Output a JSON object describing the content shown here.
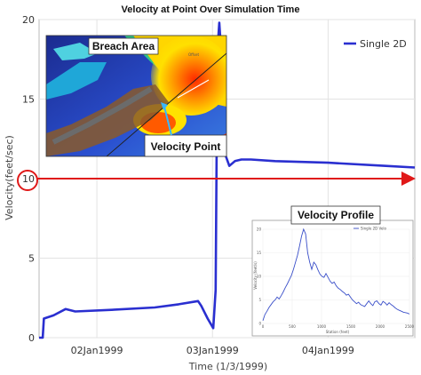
{
  "chart_data": {
    "type": "line",
    "title": "Velocity at Point Over Simulation Time",
    "xlabel": "Time (1/3/1999)",
    "ylabel": "Velocity(feet/sec)",
    "xlim": [
      "1999-01-01T12:00",
      "1999-01-04T18:00"
    ],
    "ylim": [
      0,
      20
    ],
    "yticks": [
      0,
      5,
      10,
      15,
      20
    ],
    "xticks": [
      {
        "at": "1999-01-02T00:00",
        "label": "02Jan1999"
      },
      {
        "at": "1999-01-03T00:00",
        "label": "03Jan1999"
      },
      {
        "at": "1999-01-04T00:00",
        "label": "04Jan1999"
      }
    ],
    "grid": true,
    "legend_position": "top-right",
    "series": [
      {
        "name": "Single 2D",
        "color": "#2a2fd0",
        "x": [
          "1999-01-01T12:00",
          "1999-01-01T12:45",
          "1999-01-01T13:00",
          "1999-01-01T15:00",
          "1999-01-01T17:30",
          "1999-01-01T19:30",
          "1999-01-02T03:00",
          "1999-01-02T12:00",
          "1999-01-02T17:00",
          "1999-01-02T21:00",
          "1999-01-02T21:40",
          "1999-01-02T23:00",
          "1999-01-03T00:10",
          "1999-01-03T00:40",
          "1999-01-03T01:00",
          "1999-01-03T01:25",
          "1999-01-03T02:00",
          "1999-01-03T02:40",
          "1999-01-03T03:30",
          "1999-01-03T04:40",
          "1999-01-03T06:00",
          "1999-01-03T08:00",
          "1999-01-03T13:00",
          "1999-01-04T00:00",
          "1999-01-04T12:00",
          "1999-01-04T18:00"
        ],
        "y": [
          0.0,
          0.0,
          1.2,
          1.4,
          1.8,
          1.65,
          1.75,
          1.9,
          2.1,
          2.3,
          2.0,
          1.2,
          0.6,
          3.0,
          18.0,
          19.8,
          17.0,
          11.5,
          10.8,
          11.1,
          11.2,
          11.2,
          11.1,
          11.0,
          10.8,
          10.7
        ]
      }
    ],
    "annotations": {
      "reference_line_value": 10,
      "inset_breach_label": "Breach Area",
      "inset_point_label": "Velocity Point",
      "inset_breach_tag": "Offset",
      "inset_profile_label": "Velocity Profile",
      "inset_profile_legend": "Single 2D Velo",
      "inset_profile_xlabel": "Station (feet)",
      "inset_profile_ylabel": "Velocity (feet/s)",
      "inset_profile_yticks": [
        "0",
        "5",
        "10",
        "15",
        "20"
      ],
      "inset_profile_xticks": [
        "0",
        "500",
        "1000",
        "1500",
        "2000",
        "2500"
      ],
      "inset_profile_values": [
        0.6,
        1.9,
        2.6,
        3.4,
        4.0,
        4.6,
        5.0,
        5.6,
        5.2,
        5.9,
        6.7,
        7.6,
        8.4,
        9.3,
        10.2,
        11.5,
        13.0,
        14.5,
        16.5,
        18.5,
        20.0,
        19.0,
        15.0,
        13.0,
        11.5,
        13.0,
        12.5,
        11.4,
        10.5,
        10.0,
        9.8,
        10.6,
        9.8,
        9.0,
        8.5,
        8.8,
        8.0,
        7.5,
        7.2,
        6.8,
        6.5,
        6.0,
        6.2,
        5.6,
        5.0,
        4.6,
        4.2,
        4.5,
        4.0,
        3.8,
        3.6,
        4.2,
        4.8,
        4.2,
        3.8,
        4.6,
        4.8,
        4.2,
        3.9,
        4.7,
        4.4,
        3.9,
        4.4,
        4.0,
        3.7,
        3.3,
        3.0,
        2.8,
        2.6,
        2.4,
        2.3,
        2.2,
        2.0
      ]
    }
  }
}
